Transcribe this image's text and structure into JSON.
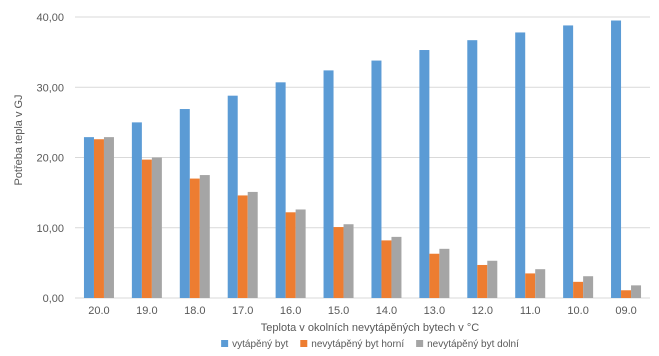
{
  "chart_data": {
    "type": "bar",
    "xlabel": "Teplota v okolních nevytápěných bytech v °C",
    "ylabel": "Potřeba tepla v GJ",
    "ylim": [
      0,
      40
    ],
    "y_ticks": [
      "0,00",
      "10,00",
      "20,00",
      "30,00",
      "40,00"
    ],
    "y_tick_values": [
      0,
      10,
      20,
      30,
      40
    ],
    "grid": true,
    "legend_position": "bottom",
    "categories": [
      "20.0",
      "19.0",
      "18.0",
      "17.0",
      "16.0",
      "15.0",
      "14.0",
      "13.0",
      "12.0",
      "11.0",
      "10.0",
      "09.0"
    ],
    "series": [
      {
        "name": "vytápěný byt",
        "color": "#5b9bd5",
        "values": [
          22.9,
          25.0,
          26.9,
          28.8,
          30.7,
          32.4,
          33.8,
          35.3,
          36.7,
          37.8,
          38.8,
          39.5
        ]
      },
      {
        "name": "nevytápěný byt horní",
        "color": "#ed7d31",
        "values": [
          22.6,
          19.7,
          17.0,
          14.6,
          12.2,
          10.1,
          8.2,
          6.3,
          4.7,
          3.5,
          2.3,
          1.1
        ]
      },
      {
        "name": "nevytápěný byt dolní",
        "color": "#a5a5a5",
        "values": [
          22.9,
          20.0,
          17.5,
          15.1,
          12.6,
          10.5,
          8.7,
          7.0,
          5.3,
          4.1,
          3.1,
          1.8
        ]
      }
    ]
  }
}
